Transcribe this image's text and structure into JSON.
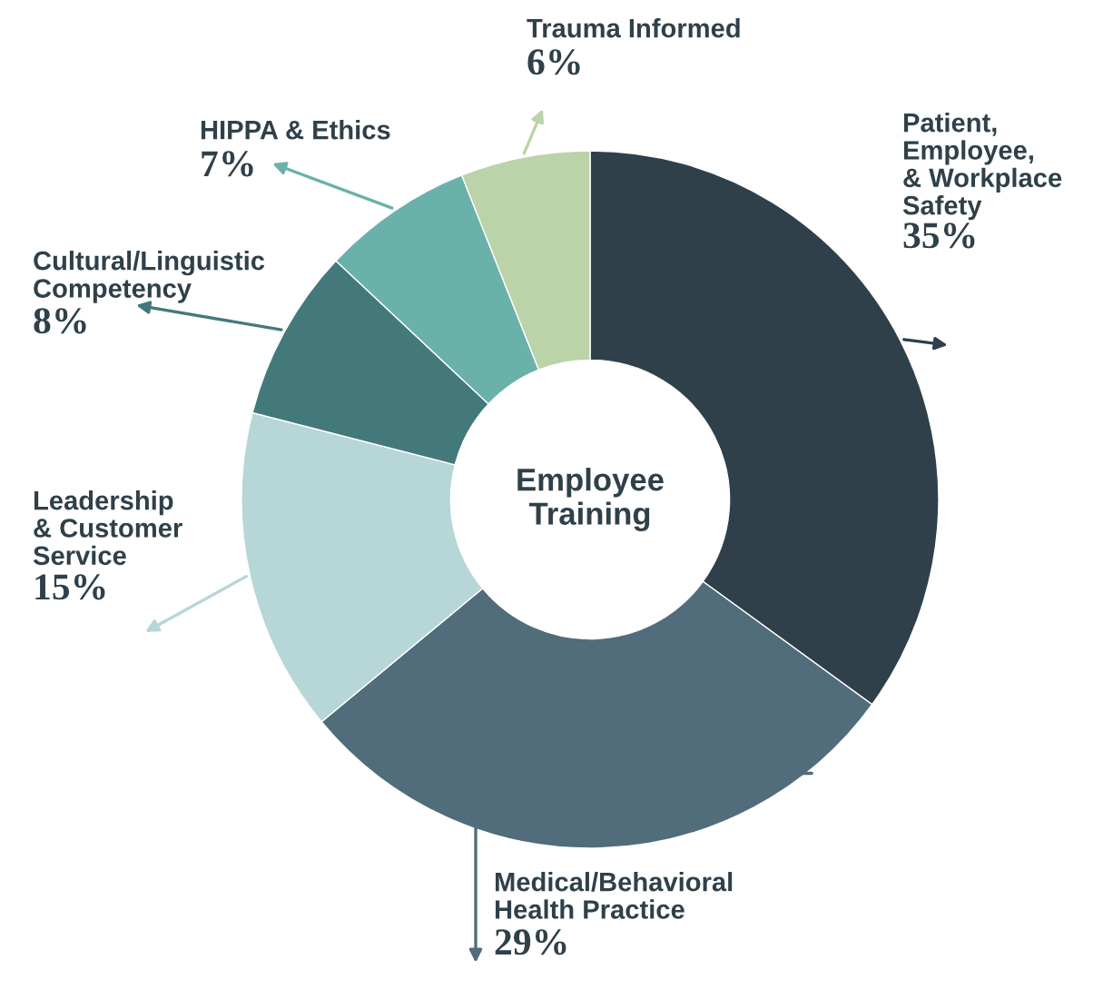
{
  "chart_data": {
    "type": "donut",
    "title": "Employee\nTraining",
    "categories": [
      "Patient,\nEmployee,\n& Workplace\nSafety",
      "Medical/Behavioral\nHealth Practice",
      "Leadership\n& Customer\nService",
      "Cultural/Linguistic\nCompetency",
      "HIPPA & Ethics",
      "Trauma Informed"
    ],
    "values": [
      35,
      29,
      15,
      8,
      7,
      6
    ],
    "colors": [
      "#2f404a",
      "#516c7a",
      "#b6d6d8",
      "#44797c",
      "#6ab1aa",
      "#bad3a9"
    ],
    "value_labels": [
      "35%",
      "29%",
      "15%",
      "8%",
      "7%",
      "6%"
    ],
    "legend": false
  }
}
